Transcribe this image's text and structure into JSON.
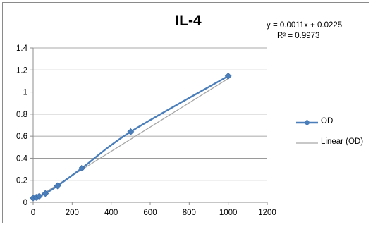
{
  "chart_data": {
    "type": "scatter",
    "title": "IL-4",
    "trendline_equation": "y = 0.0011x + 0.0225",
    "trendline_r2": "R² = 0.9973",
    "xlabel": "",
    "ylabel": "",
    "xlim": [
      0,
      1200
    ],
    "ylim": [
      0,
      1.4
    ],
    "x_ticks": [
      0,
      200,
      400,
      600,
      800,
      1000,
      1200
    ],
    "y_ticks": [
      0,
      0.2,
      0.4,
      0.6,
      0.8,
      1,
      1.2,
      1.4
    ],
    "x_tick_labels": [
      "0",
      "200",
      "400",
      "600",
      "800",
      "1000",
      "1200"
    ],
    "y_tick_labels": [
      "0",
      "0.2",
      "0.4",
      "0.6",
      "0.8",
      "1",
      "1.2",
      "1.4"
    ],
    "grid": "horizontal",
    "legend_position": "right",
    "series": [
      {
        "name": "OD",
        "color": "#4a7ebb",
        "marker": "diamond",
        "x": [
          0,
          15.6,
          31.25,
          62.5,
          125,
          250,
          500,
          1000
        ],
        "y": [
          0.04,
          0.045,
          0.055,
          0.08,
          0.15,
          0.31,
          0.64,
          1.145
        ]
      },
      {
        "name": "Linear (OD)",
        "color": "#a6a6a6",
        "type": "trendline",
        "slope": 0.0011,
        "intercept": 0.0225
      }
    ]
  }
}
